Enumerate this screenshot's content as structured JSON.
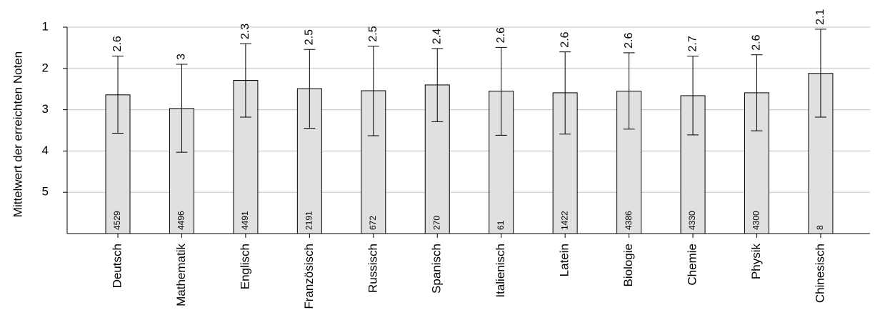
{
  "chart_data": {
    "type": "bar",
    "ylabel": "Mittelwert der erreichten Noten",
    "y_axis_inverted": true,
    "ylim": [
      1,
      6
    ],
    "yticks": [
      "1",
      "2",
      "3",
      "4",
      "5"
    ],
    "grid": "horizontal",
    "bar_color": "#e0e0e0",
    "categories": [
      "Deutsch",
      "Mathematik",
      "Englisch",
      "Französisch",
      "Russisch",
      "Spanisch",
      "Italienisch",
      "Latein",
      "Biologie",
      "Chemie",
      "Physik",
      "Chinesisch"
    ],
    "values": [
      2.64,
      2.97,
      2.29,
      2.49,
      2.54,
      2.4,
      2.55,
      2.59,
      2.55,
      2.66,
      2.59,
      2.12
    ],
    "value_labels": [
      "2.6",
      "3",
      "2.3",
      "2.5",
      "2.5",
      "2.4",
      "2.6",
      "2.6",
      "2.6",
      "2.7",
      "2.6",
      "2.1"
    ],
    "error_low": [
      1.7,
      1.9,
      1.4,
      1.54,
      1.46,
      1.52,
      1.49,
      1.6,
      1.62,
      1.7,
      1.67,
      1.05
    ],
    "error_high": [
      3.57,
      4.03,
      3.18,
      3.45,
      3.63,
      3.29,
      3.62,
      3.59,
      3.47,
      3.61,
      3.51,
      3.18
    ],
    "n_labels": [
      "4529",
      "4496",
      "4491",
      "2191",
      "672",
      "270",
      "61",
      "1422",
      "4386",
      "4330",
      "4300",
      "8"
    ]
  }
}
